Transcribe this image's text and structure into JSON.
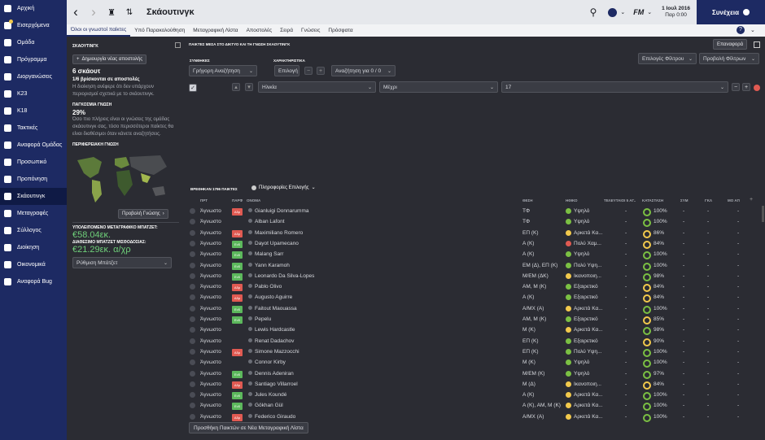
{
  "sidebar": {
    "items": [
      {
        "label": "Αρχική",
        "icon": "home-icon"
      },
      {
        "label": "Εισερχόμενα",
        "icon": "inbox-icon",
        "badge": true
      },
      {
        "label": "Ομάδα",
        "icon": "team-icon"
      },
      {
        "label": "Πρόγραμμα",
        "icon": "calendar-icon"
      },
      {
        "label": "Διοργανώσεις",
        "icon": "trophy-icon"
      },
      {
        "label": "K23",
        "icon": "u23-icon"
      },
      {
        "label": "K18",
        "icon": "u18-icon"
      },
      {
        "label": "Τακτικές",
        "icon": "tactics-icon"
      },
      {
        "label": "Αναφορά Ομάδας",
        "icon": "report-icon"
      },
      {
        "label": "Προσωπικό",
        "icon": "staff-icon"
      },
      {
        "label": "Προπόνηση",
        "icon": "training-icon"
      },
      {
        "label": "Σκάουτινγκ",
        "icon": "scouting-icon",
        "active": true
      },
      {
        "label": "Μεταγραφές",
        "icon": "transfers-icon"
      },
      {
        "label": "Σύλλογος",
        "icon": "club-icon"
      },
      {
        "label": "Διοίκηση",
        "icon": "board-icon"
      },
      {
        "label": "Οικονομικά",
        "icon": "finances-icon"
      },
      {
        "label": "Αναφορά Bug",
        "icon": "bug-icon"
      }
    ]
  },
  "topbar": {
    "title": "Σκάουτινγκ",
    "date_line1": "1 Ιουλ 2016",
    "date_line2": "Παρ 0:00",
    "continue_label": "Συνέχεια",
    "club_abbr": "FM"
  },
  "tabs": [
    "Όλοι οι γνωστοί παίκτες",
    "Υπό Παρακολούθηση",
    "Μεταγραφική Λίστα",
    "Αποστολές",
    "Σειρά",
    "Γνώσεις",
    "Πρόσφατα"
  ],
  "panel": {
    "header": "ΣΚΑΟΥΤΙΝΓΚ",
    "new_assignment": "Δημιουργία νέας αποστολής",
    "scouts_count": "6 σκάουτ",
    "on_assignment": "1/6 βρίσκονται σε αποστολές",
    "board_text": "Η διοίκηση ανέφερε ότι δεν υπάρχουν περιορισμοί σχετικά με το σκάουτινγκ.",
    "global_header": "ΠΑΓΚΟΣΜΙΑ ΓΝΩΣΗ",
    "global_pct": "29%",
    "global_text": "Όσο πιο πλήρεις είναι οι γνώσεις της ομάδας σκάουτινγκ σας, τόσο περισσότεροι παίκτες θα είναι διαθέσιμοι όταν κάνετε αναζητήσεις.",
    "regional_header": "ΠΕΡΙΦΕΡΕΙΑΚΗ ΓΝΩΣΗ",
    "view_knowledge": "Προβολή Γνώσης",
    "transfer_label": "ΥΠΟΛΕΙΠΟΜΕΝΟ ΜΕΤΑΓΡΑΦΙΚΟ ΜΠΑΤΖΕΤ:",
    "transfer_value": "€58.04εκ.",
    "wage_label": "ΔΙΑΘΕΣΙΜΟ ΜΠΑΤΖΕΤ ΜΙΣΘΟΔΟΣΙΑΣ:",
    "wage_value": "€21.29εκ. α/χρ",
    "budget_button": "Ρύθμιση Μπάτζετ"
  },
  "main": {
    "heading": "ΠΑΙΚΤΕΣ ΜΕΣΑ ΣΤΟ ΔΙΚΤΥΟ ΚΑΙ ΤΗ ΓΝΩΣΗ ΣΚΑΟΥΤΙΝΓΚ",
    "reset": "Επαναφορά",
    "filter_options": "Επιλογές Φίλτρου",
    "view_filters": "Προβολή Φίλτρων",
    "conditions_label": "ΣΥΝΘΗΚΕΣ",
    "quick_search": "Γρήγορη Αναζήτηση",
    "attributes_label": "ΧΑΡΑΚΤΗΡΙΣΤΙΚΑ",
    "choice": "Επιλογή",
    "search_for": "Αναζήτηση για 0 / 0",
    "age": "Ηλικία",
    "until": "Μέχρι",
    "age_value": "17",
    "found": "ΒΡΕΘΗΚΑΝ 1796 ΠΑΙΚΤΕΣ",
    "selection_info": "Πληροφορίες Επιλογής",
    "add_button": "Προσθήκη Παικτών σε Νέα Μεταγραφική Λίστα"
  },
  "columns": [
    "ΠΡΤ",
    "ΠΑΡΦ",
    "ΟΝΟΜΑ",
    "ΘΕΣΗ",
    "ΗΘΙΚΟ",
    "ΤΕΛΕΥΤΑΙΟΙ 5 ΑΓ..",
    "ΚΑΤΑΣΤΑΣΗ",
    "ΣΥΜ",
    "ΓΚΛ",
    "ΜΟ ΑΠ"
  ],
  "rows": [
    {
      "prt": "Άγνωστο",
      "pref": "Αδρ",
      "name": "Gianluigi Donnarumma",
      "pos": "ΤΦ",
      "morale": "Υψηλό",
      "last5": "-",
      "cond": "100%",
      "sym": "-",
      "gkl": "-",
      "moap": "-"
    },
    {
      "prt": "Άγνωστο",
      "pref": "",
      "name": "Alban Lafont",
      "pos": "ΤΦ",
      "morale": "Υψηλό",
      "last5": "-",
      "cond": "100%",
      "sym": "-",
      "gkl": "-",
      "moap": "-"
    },
    {
      "prt": "Άγνωστο",
      "pref": "Αδρ",
      "name": "Maximiliano Romero",
      "pos": "ΕΠ (Κ)",
      "morale": "Αρκετά Κα...",
      "last5": "-",
      "cond": "86%",
      "sym": "-",
      "gkl": "-",
      "moap": "-"
    },
    {
      "prt": "Άγνωστο",
      "pref": "Ενδ",
      "name": "Dayot Upamecano",
      "pos": "Α (Κ)",
      "morale": "Πολύ Χαμ...",
      "last5": "-",
      "cond": "84%",
      "sym": "-",
      "gkl": "-",
      "moap": "-"
    },
    {
      "prt": "Άγνωστο",
      "pref": "Ενδ",
      "name": "Malang Sarr",
      "pos": "Α (Κ)",
      "morale": "Υψηλό",
      "last5": "-",
      "cond": "100%",
      "sym": "-",
      "gkl": "-",
      "moap": "-"
    },
    {
      "prt": "Άγνωστο",
      "pref": "Ενδ",
      "name": "Yann Karamoh",
      "pos": "ΕΜ (Δ), ΕΠ (Κ)",
      "morale": "Πολύ Υψη...",
      "last5": "-",
      "cond": "100%",
      "sym": "-",
      "gkl": "-",
      "moap": "-"
    },
    {
      "prt": "Άγνωστο",
      "pref": "Ενδ",
      "name": "Leonardo Da Silva-Lopes",
      "pos": "Μ/ΕΜ (ΔΚ)",
      "morale": "Ικανοποιη...",
      "last5": "-",
      "cond": "98%",
      "sym": "-",
      "gkl": "-",
      "moap": "-"
    },
    {
      "prt": "Άγνωστο",
      "pref": "Αδρ",
      "name": "Pablo Olivo",
      "pos": "ΑΜ, Μ (Κ)",
      "morale": "Εξαιρετικό",
      "last5": "-",
      "cond": "84%",
      "sym": "-",
      "gkl": "-",
      "moap": "-"
    },
    {
      "prt": "Άγνωστο",
      "pref": "Αδρ",
      "name": "Augusto Aguirre",
      "pos": "Α (Κ)",
      "morale": "Εξαιρετικό",
      "last5": "-",
      "cond": "84%",
      "sym": "-",
      "gkl": "-",
      "moap": "-"
    },
    {
      "prt": "Άγνωστο",
      "pref": "Ενδ",
      "name": "Faitout Maouassa",
      "pos": "Α/ΜΧ (Α)",
      "morale": "Αρκετά Κα...",
      "last5": "-",
      "cond": "100%",
      "sym": "-",
      "gkl": "-",
      "moap": "-"
    },
    {
      "prt": "Άγνωστο",
      "pref": "Ενδ",
      "name": "Pepelu",
      "pos": "ΑΜ, Μ (Κ)",
      "morale": "Εξαιρετικό",
      "last5": "-",
      "cond": "85%",
      "sym": "-",
      "gkl": "-",
      "moap": "-"
    },
    {
      "prt": "Άγνωστο",
      "pref": "",
      "name": "Lewis Hardcastle",
      "pos": "Μ (Κ)",
      "morale": "Αρκετά Κα...",
      "last5": "-",
      "cond": "98%",
      "sym": "-",
      "gkl": "-",
      "moap": "-"
    },
    {
      "prt": "Άγνωστο",
      "pref": "",
      "name": "Renat Dadachov",
      "pos": "ΕΠ (Κ)",
      "morale": "Εξαιρετικό",
      "last5": "-",
      "cond": "90%",
      "sym": "-",
      "gkl": "-",
      "moap": "-"
    },
    {
      "prt": "Άγνωστο",
      "pref": "Αδρ",
      "name": "Simone Mazzocchi",
      "pos": "ΕΠ (Κ)",
      "morale": "Πολύ Υψη...",
      "last5": "-",
      "cond": "100%",
      "sym": "-",
      "gkl": "-",
      "moap": "-"
    },
    {
      "prt": "Άγνωστο",
      "pref": "",
      "name": "Connor Kirby",
      "pos": "Μ (Κ)",
      "morale": "Υψηλό",
      "last5": "-",
      "cond": "100%",
      "sym": "-",
      "gkl": "-",
      "moap": "-"
    },
    {
      "prt": "Άγνωστο",
      "pref": "Ενδ",
      "name": "Dennis Adeniran",
      "pos": "Μ/ΕΜ (Κ)",
      "morale": "Υψηλό",
      "last5": "-",
      "cond": "97%",
      "sym": "-",
      "gkl": "-",
      "moap": "-"
    },
    {
      "prt": "Άγνωστο",
      "pref": "Αδρ",
      "name": "Santiago Villarroel",
      "pos": "Μ (Δ)",
      "morale": "Ικανοποιη...",
      "last5": "-",
      "cond": "84%",
      "sym": "-",
      "gkl": "-",
      "moap": "-"
    },
    {
      "prt": "Άγνωστο",
      "pref": "Ενδ",
      "name": "Jules Koundé",
      "pos": "Α (Κ)",
      "morale": "Αρκετά Κα...",
      "last5": "-",
      "cond": "100%",
      "sym": "-",
      "gkl": "-",
      "moap": "-"
    },
    {
      "prt": "Άγνωστο",
      "pref": "Ενδ",
      "name": "Gökhan Gül",
      "pos": "Α (Κ), ΑΜ, Μ (Κ)",
      "morale": "Αρκετά Κα...",
      "last5": "-",
      "cond": "100%",
      "sym": "-",
      "gkl": "-",
      "moap": "-"
    },
    {
      "prt": "Άγνωστο",
      "pref": "Αδρ",
      "name": "Federico Giraudo",
      "pos": "Α/ΜΧ (Α)",
      "morale": "Αρκετά Κα...",
      "last5": "-",
      "cond": "100%",
      "sym": "-",
      "gkl": "-",
      "moap": "-"
    }
  ],
  "colors": {
    "pref_adr": "#e05a52",
    "pref_end": "#5cb85c",
    "good": "#7bc043",
    "ok": "#f2c94c",
    "bad": "#e05a52"
  }
}
